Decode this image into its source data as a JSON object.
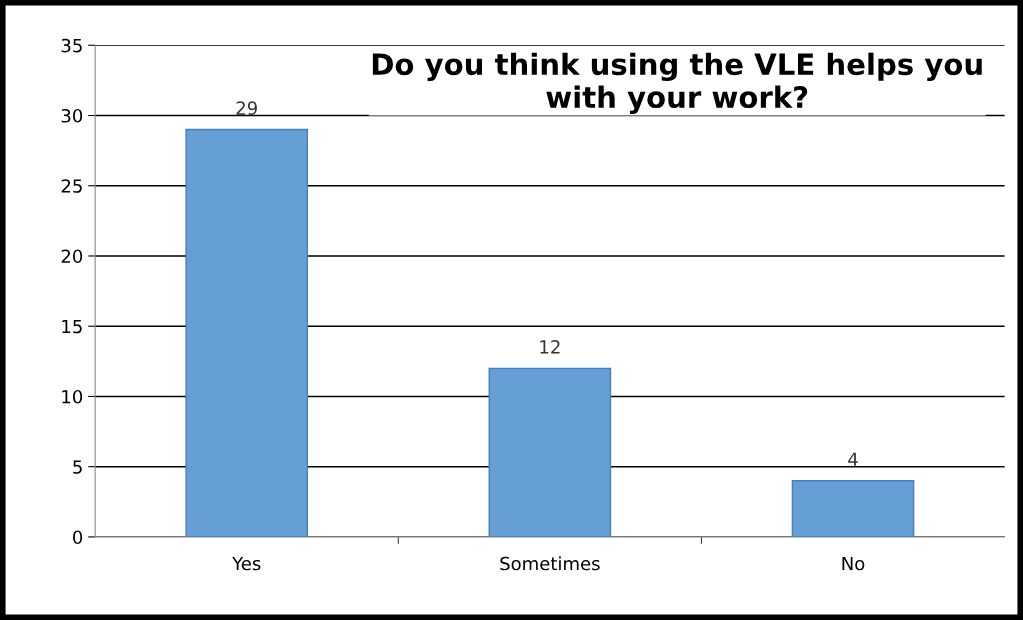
{
  "chart_data": {
    "type": "bar",
    "title": "Do you think using the VLE helps you\nwith your work?",
    "categories": [
      "Yes",
      "Sometimes",
      "No"
    ],
    "values": [
      29,
      12,
      4
    ],
    "color": "#659fd5",
    "ylim": [
      0,
      35
    ],
    "yticks": [
      0,
      5,
      10,
      15,
      20,
      25,
      30,
      35
    ],
    "grid": "y",
    "data_labels": true
  }
}
